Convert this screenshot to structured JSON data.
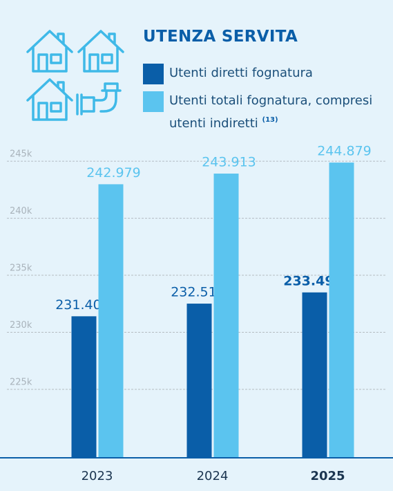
{
  "chart_data": {
    "type": "bar",
    "title": "UTENZA SERVITA",
    "legend_note": "(13)",
    "categories": [
      "2023",
      "2024",
      "2025"
    ],
    "series": [
      {
        "name": "Utenti diretti fognatura",
        "color": "#0a5ea8",
        "values": [
          231406,
          232515,
          233498
        ],
        "value_labels": [
          "231.406",
          "232.515",
          "233.498"
        ]
      },
      {
        "name": "Utenti totali fognatura, compresi utenti indiretti",
        "color": "#5bc4ef",
        "values": [
          242979,
          243913,
          244879
        ],
        "value_labels": [
          "242.979",
          "243.913",
          "244.879"
        ]
      }
    ],
    "ylim": [
      219000,
      246400
    ],
    "yticks": [
      {
        "value": 225000,
        "label": "225k"
      },
      {
        "value": 230000,
        "label": "230k"
      },
      {
        "value": 235000,
        "label": "235k"
      },
      {
        "value": 240000,
        "label": "240k"
      },
      {
        "value": 245000,
        "label": "245k"
      }
    ],
    "grid": true
  }
}
